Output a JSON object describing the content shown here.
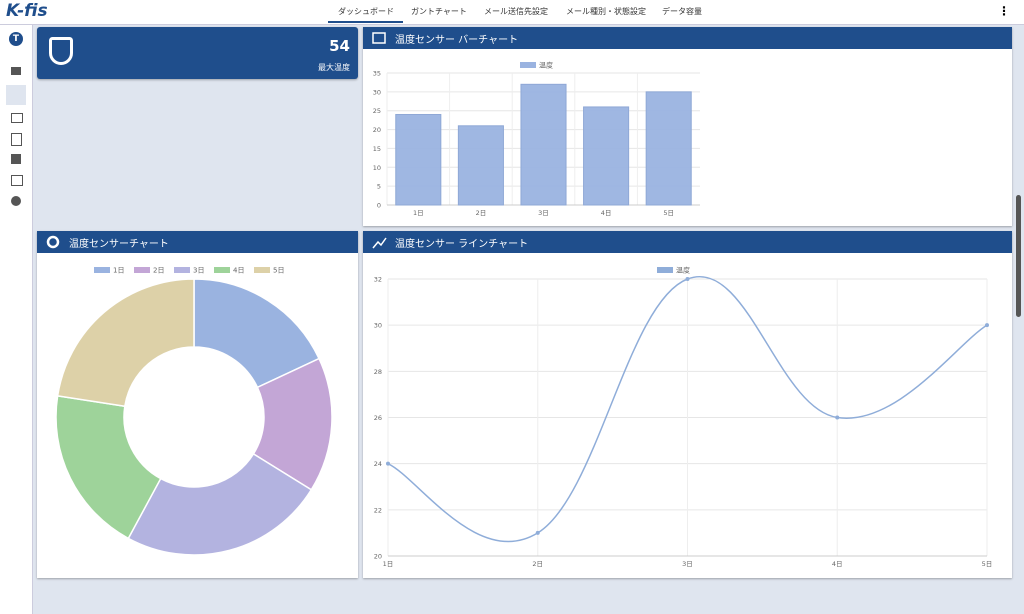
{
  "header": {
    "logo": "K-fis",
    "tabs": [
      "ダッシュボード",
      "ガントチャート",
      "メール送信先設定",
      "メール種別・状態設定",
      "データ容量"
    ],
    "avatar": "T"
  },
  "stat_widget": {
    "value": "54",
    "label": "最大温度"
  },
  "chart_data": [
    {
      "type": "bar",
      "title": "温度センサー バーチャート",
      "categories": [
        "1日",
        "2日",
        "3日",
        "4日",
        "5日"
      ],
      "series": [
        {
          "name": "温度",
          "color": "#9ab3e0",
          "values": [
            24,
            21,
            32,
            26,
            30
          ]
        }
      ],
      "ylim": [
        0,
        35
      ],
      "yticks": [
        0,
        5,
        10,
        15,
        20,
        25,
        30,
        35
      ],
      "grid": true
    },
    {
      "type": "doughnut",
      "title": "温度センサーチャート",
      "categories": [
        "1日",
        "2日",
        "3日",
        "4日",
        "5日"
      ],
      "values": [
        24,
        21,
        32,
        26,
        30
      ],
      "colors": [
        "#9ab3e0",
        "#c3a6d6",
        "#b3b3e0",
        "#9ed39a",
        "#ddd1a8"
      ]
    },
    {
      "type": "line",
      "title": "温度センサー ラインチャート",
      "categories": [
        "1日",
        "2日",
        "3日",
        "4日",
        "5日"
      ],
      "series": [
        {
          "name": "温度",
          "color": "#8fadd9",
          "values": [
            24,
            21,
            32,
            26,
            30
          ]
        }
      ],
      "ylim": [
        20,
        32
      ],
      "yticks": [
        20,
        22,
        24,
        26,
        28,
        30,
        32
      ],
      "grid": true
    }
  ]
}
